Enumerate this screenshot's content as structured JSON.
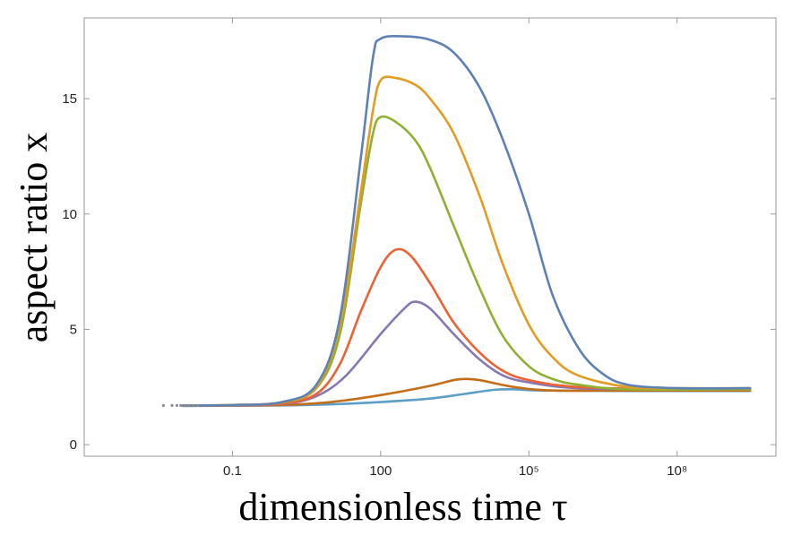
{
  "chart_data": {
    "type": "line",
    "xlabel": "dimensionless time τ",
    "ylabel": "aspect ratio x",
    "x_scale": "log",
    "xlim": [
      0.0001,
      10000000000
    ],
    "ylim": [
      -0.5,
      18.5
    ],
    "x_ticks": [
      {
        "value": 0.1,
        "label": "0.1"
      },
      {
        "value": 100,
        "label": "100"
      },
      {
        "value": 100000,
        "label": "10⁵"
      },
      {
        "value": 100000000,
        "label": "10⁸"
      }
    ],
    "y_ticks": [
      {
        "value": 0,
        "label": "0"
      },
      {
        "value": 5,
        "label": "5"
      },
      {
        "value": 10,
        "label": "10"
      },
      {
        "value": 15,
        "label": "15"
      }
    ],
    "grid": false,
    "legend": "none",
    "series": [
      {
        "color": "#5e81b5",
        "points": [
          [
            0.01,
            1.7
          ],
          [
            0.1,
            1.72
          ],
          [
            1,
            1.85
          ],
          [
            5,
            2.6
          ],
          [
            15,
            5.5
          ],
          [
            40,
            12.5
          ],
          [
            70,
            16.8
          ],
          [
            100,
            17.6
          ],
          [
            300,
            17.7
          ],
          [
            1000,
            17.55
          ],
          [
            3000,
            17.0
          ],
          [
            10000,
            15.5
          ],
          [
            30000,
            13.2
          ],
          [
            100000,
            10.0
          ],
          [
            300000,
            6.5
          ],
          [
            1000000,
            4.2
          ],
          [
            3000000,
            3.1
          ],
          [
            10000000,
            2.6
          ],
          [
            100000000,
            2.45
          ],
          [
            3000000000,
            2.45
          ]
        ]
      },
      {
        "color": "#e19c24",
        "points": [
          [
            0.01,
            1.7
          ],
          [
            0.1,
            1.72
          ],
          [
            1,
            1.84
          ],
          [
            5,
            2.5
          ],
          [
            15,
            5.2
          ],
          [
            40,
            11.0
          ],
          [
            70,
            14.5
          ],
          [
            100,
            15.8
          ],
          [
            200,
            15.9
          ],
          [
            500,
            15.6
          ],
          [
            1000,
            15.0
          ],
          [
            3000,
            13.5
          ],
          [
            10000,
            10.8
          ],
          [
            30000,
            7.8
          ],
          [
            100000,
            5.2
          ],
          [
            300000,
            3.8
          ],
          [
            1000000,
            3.0
          ],
          [
            10000000,
            2.5
          ],
          [
            100000000,
            2.45
          ],
          [
            3000000000,
            2.45
          ]
        ]
      },
      {
        "color": "#8fb032",
        "points": [
          [
            0.01,
            1.7
          ],
          [
            0.1,
            1.72
          ],
          [
            1,
            1.83
          ],
          [
            5,
            2.45
          ],
          [
            15,
            4.8
          ],
          [
            40,
            10.5
          ],
          [
            70,
            13.5
          ],
          [
            100,
            14.2
          ],
          [
            200,
            14.0
          ],
          [
            500,
            13.2
          ],
          [
            1000,
            12.0
          ],
          [
            3000,
            9.5
          ],
          [
            10000,
            6.8
          ],
          [
            30000,
            4.7
          ],
          [
            100000,
            3.4
          ],
          [
            300000,
            2.85
          ],
          [
            1000000,
            2.6
          ],
          [
            10000000,
            2.4
          ],
          [
            3000000000,
            2.4
          ]
        ]
      },
      {
        "color": "#eb6235",
        "points": [
          [
            0.01,
            1.7
          ],
          [
            0.1,
            1.71
          ],
          [
            1,
            1.78
          ],
          [
            5,
            2.2
          ],
          [
            15,
            3.5
          ],
          [
            40,
            5.8
          ],
          [
            100,
            7.7
          ],
          [
            200,
            8.45
          ],
          [
            400,
            8.2
          ],
          [
            1000,
            7.0
          ],
          [
            3000,
            5.3
          ],
          [
            10000,
            4.0
          ],
          [
            30000,
            3.2
          ],
          [
            100000,
            2.8
          ],
          [
            1000000,
            2.5
          ],
          [
            100000000,
            2.4
          ],
          [
            3000000000,
            2.4
          ]
        ]
      },
      {
        "color": "#8778b3",
        "points": [
          [
            0.01,
            1.7
          ],
          [
            0.1,
            1.71
          ],
          [
            1,
            1.76
          ],
          [
            5,
            2.1
          ],
          [
            20,
            3.0
          ],
          [
            100,
            4.8
          ],
          [
            300,
            5.9
          ],
          [
            500,
            6.2
          ],
          [
            1000,
            5.9
          ],
          [
            3000,
            4.8
          ],
          [
            10000,
            3.7
          ],
          [
            30000,
            3.0
          ],
          [
            100000,
            2.7
          ],
          [
            1000000,
            2.45
          ],
          [
            100000000,
            2.4
          ],
          [
            3000000000,
            2.4
          ]
        ]
      },
      {
        "color": "#c56e1a",
        "points": [
          [
            0.01,
            1.7
          ],
          [
            0.1,
            1.7
          ],
          [
            1,
            1.72
          ],
          [
            10,
            1.85
          ],
          [
            100,
            2.15
          ],
          [
            1000,
            2.55
          ],
          [
            3000,
            2.8
          ],
          [
            5000,
            2.85
          ],
          [
            10000,
            2.8
          ],
          [
            50000,
            2.5
          ],
          [
            300000,
            2.35
          ],
          [
            10000000,
            2.35
          ],
          [
            3000000000,
            2.35
          ]
        ]
      },
      {
        "color": "#5d9ec7",
        "points": [
          [
            0.01,
            1.68
          ],
          [
            0.1,
            1.69
          ],
          [
            1,
            1.7
          ],
          [
            10,
            1.75
          ],
          [
            100,
            1.85
          ],
          [
            1000,
            2.0
          ],
          [
            5000,
            2.2
          ],
          [
            20000,
            2.38
          ],
          [
            50000,
            2.4
          ],
          [
            200000,
            2.35
          ],
          [
            10000000,
            2.33
          ],
          [
            3000000000,
            2.33
          ]
        ]
      }
    ],
    "scatter": [
      {
        "color": "#8c8c8c",
        "points": [
          [
            0.004,
            1.7
          ],
          [
            0.006,
            1.7
          ],
          [
            0.0075,
            1.7
          ],
          [
            0.009,
            1.7
          ],
          [
            0.011,
            1.7
          ],
          [
            0.013,
            1.7
          ],
          [
            0.016,
            1.7
          ],
          [
            0.02,
            1.7
          ]
        ]
      }
    ]
  }
}
